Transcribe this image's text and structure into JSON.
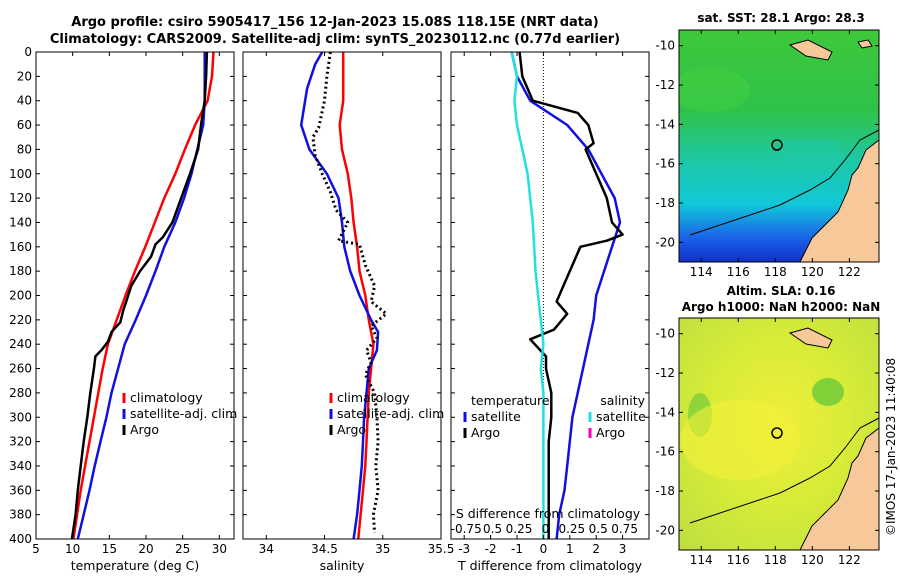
{
  "titles": {
    "line1": "Argo profile: csiro 5905417_156 12-Jan-2023 15.08S 118.15E (NRT data)",
    "line2": "Climatology: CARS2009. Satellite-adj clim: synTS_20230112.nc (0.77d earlier)"
  },
  "watermark": "©IMOS 17-Jan-2023 11:40:08",
  "colors": {
    "climatology": "#ff0000",
    "satellite": "#1010e0",
    "argo": "#000000",
    "sal_satellite": "#20e0e0",
    "sal_argo": "#ff00c0",
    "land": "#f7c89a"
  },
  "chart_data": [
    {
      "type": "line",
      "id": "temperature",
      "xlabel": "temperature (deg C)",
      "ylabel": "",
      "xlim": [
        5,
        32
      ],
      "ylim": [
        400,
        0
      ],
      "xticks": [
        "5",
        "10",
        "15",
        "20",
        "25",
        "30"
      ],
      "yticks": [
        "0",
        "20",
        "40",
        "60",
        "80",
        "100",
        "120",
        "140",
        "160",
        "180",
        "200",
        "220",
        "240",
        "260",
        "280",
        "300",
        "320",
        "340",
        "360",
        "380",
        "400"
      ],
      "legend": [
        "climatology",
        "satellite-adj. clim",
        "Argo"
      ],
      "series": [
        {
          "name": "climatology",
          "style": "climatology",
          "points": [
            [
              29.2,
              0
            ],
            [
              29.0,
              20
            ],
            [
              28.4,
              40
            ],
            [
              26.7,
              60
            ],
            [
              25.3,
              80
            ],
            [
              24.0,
              100
            ],
            [
              22.5,
              120
            ],
            [
              21.2,
              140
            ],
            [
              19.9,
              160
            ],
            [
              18.5,
              180
            ],
            [
              17.2,
              200
            ],
            [
              16.0,
              220
            ],
            [
              14.8,
              240
            ],
            [
              14.1,
              260
            ],
            [
              13.5,
              280
            ],
            [
              12.9,
              300
            ],
            [
              12.3,
              320
            ],
            [
              11.7,
              340
            ],
            [
              11.1,
              360
            ],
            [
              10.6,
              380
            ],
            [
              10.1,
              400
            ]
          ]
        },
        {
          "name": "satellite-adj. clim",
          "style": "satellite",
          "points": [
            [
              28.0,
              0
            ],
            [
              28.0,
              20
            ],
            [
              28.0,
              40
            ],
            [
              27.8,
              60
            ],
            [
              27.0,
              80
            ],
            [
              26.2,
              100
            ],
            [
              25.2,
              120
            ],
            [
              24.0,
              140
            ],
            [
              22.5,
              160
            ],
            [
              21.3,
              180
            ],
            [
              20.0,
              200
            ],
            [
              18.6,
              220
            ],
            [
              17.1,
              240
            ],
            [
              16.2,
              260
            ],
            [
              15.3,
              280
            ],
            [
              14.6,
              300
            ],
            [
              13.8,
              320
            ],
            [
              13.0,
              340
            ],
            [
              12.3,
              360
            ],
            [
              11.5,
              380
            ],
            [
              10.7,
              400
            ]
          ]
        },
        {
          "name": "Argo",
          "style": "argo",
          "points": [
            [
              28.3,
              0
            ],
            [
              28.2,
              20
            ],
            [
              28.0,
              40
            ],
            [
              27.5,
              60
            ],
            [
              27.1,
              80
            ],
            [
              26.0,
              100
            ],
            [
              24.8,
              120
            ],
            [
              23.6,
              140
            ],
            [
              22.3,
              152
            ],
            [
              21.3,
              158
            ],
            [
              20.7,
              168
            ],
            [
              19.2,
              180
            ],
            [
              18.0,
              192
            ],
            [
              17.3,
              205
            ],
            [
              16.9,
              212
            ],
            [
              16.5,
              222
            ],
            [
              15.3,
              230
            ],
            [
              14.8,
              238
            ],
            [
              13.9,
              245
            ],
            [
              13.1,
              250
            ],
            [
              12.9,
              260
            ],
            [
              12.4,
              280
            ],
            [
              12.0,
              300
            ],
            [
              11.5,
              320
            ],
            [
              11.1,
              340
            ],
            [
              10.7,
              360
            ],
            [
              10.4,
              380
            ],
            [
              9.9,
              400
            ]
          ]
        }
      ]
    },
    {
      "type": "line",
      "id": "salinity",
      "xlabel": "salinity",
      "ylabel": "",
      "xlim": [
        33.8,
        35.5
      ],
      "ylim": [
        400,
        0
      ],
      "xticks": [
        "34",
        "34.5",
        "35",
        "35.5"
      ],
      "legend": [
        "climatology",
        "satellite-adj. clim",
        "Argo"
      ],
      "series": [
        {
          "name": "climatology",
          "style": "climatology",
          "points": [
            [
              34.66,
              0
            ],
            [
              34.66,
              20
            ],
            [
              34.66,
              40
            ],
            [
              34.63,
              60
            ],
            [
              34.65,
              80
            ],
            [
              34.7,
              100
            ],
            [
              34.73,
              120
            ],
            [
              34.75,
              140
            ],
            [
              34.78,
              160
            ],
            [
              34.8,
              180
            ],
            [
              34.85,
              200
            ],
            [
              34.88,
              220
            ],
            [
              34.92,
              240
            ],
            [
              34.9,
              260
            ],
            [
              34.88,
              280
            ],
            [
              34.87,
              300
            ],
            [
              34.86,
              320
            ],
            [
              34.85,
              340
            ],
            [
              34.83,
              360
            ],
            [
              34.81,
              380
            ],
            [
              34.79,
              400
            ]
          ]
        },
        {
          "name": "satellite-adj. clim",
          "style": "satellite",
          "points": [
            [
              34.48,
              0
            ],
            [
              34.42,
              10
            ],
            [
              34.35,
              30
            ],
            [
              34.3,
              60
            ],
            [
              34.37,
              80
            ],
            [
              34.52,
              100
            ],
            [
              34.62,
              120
            ],
            [
              34.65,
              140
            ],
            [
              34.67,
              160
            ],
            [
              34.72,
              180
            ],
            [
              34.8,
              200
            ],
            [
              34.9,
              220
            ],
            [
              34.96,
              230
            ],
            [
              34.95,
              245
            ],
            [
              34.88,
              260
            ],
            [
              34.86,
              280
            ],
            [
              34.84,
              300
            ],
            [
              34.83,
              320
            ],
            [
              34.82,
              340
            ],
            [
              34.8,
              360
            ],
            [
              34.78,
              380
            ],
            [
              34.75,
              400
            ]
          ]
        },
        {
          "name": "Argo",
          "style": "argo",
          "points": [
            [
              34.55,
              0
            ],
            [
              34.52,
              20
            ],
            [
              34.5,
              40
            ],
            [
              34.45,
              62
            ],
            [
              34.4,
              70
            ],
            [
              34.42,
              85
            ],
            [
              34.48,
              100
            ],
            [
              34.55,
              115
            ],
            [
              34.6,
              130
            ],
            [
              34.7,
              140
            ],
            [
              34.62,
              155
            ],
            [
              34.8,
              158
            ],
            [
              34.85,
              175
            ],
            [
              34.93,
              192
            ],
            [
              34.9,
              205
            ],
            [
              35.03,
              215
            ],
            [
              34.9,
              225
            ],
            [
              34.95,
              235
            ],
            [
              34.86,
              245
            ],
            [
              34.9,
              255
            ],
            [
              34.85,
              265
            ],
            [
              34.93,
              280
            ],
            [
              34.95,
              300
            ],
            [
              34.96,
              320
            ],
            [
              34.94,
              340
            ],
            [
              34.96,
              360
            ],
            [
              34.92,
              380
            ],
            [
              34.93,
              395
            ]
          ]
        }
      ]
    },
    {
      "type": "line",
      "id": "difference",
      "xlabel": "T difference from climatology",
      "ylabel": "",
      "xlim": [
        -3.5,
        4.0
      ],
      "ylim": [
        400,
        0
      ],
      "xticks": [
        "-3",
        "-2",
        "-1",
        "0",
        "1",
        "2",
        "3"
      ],
      "secondary_xlabel": "S difference from climatology",
      "secondary_xticks": [
        "-0.75",
        "0.5",
        "0.25",
        "0",
        "0.25",
        "0.5",
        "0.75"
      ],
      "zero_line": 0,
      "legend_left_title": "temperature",
      "legend_right_title": "salinity",
      "legend_left": [
        "satellite",
        "Argo"
      ],
      "legend_right": [
        "satellite",
        "Argo"
      ],
      "series": [
        {
          "name": "T satellite",
          "style": "satellite",
          "points": [
            [
              -1.2,
              0
            ],
            [
              -1.0,
              20
            ],
            [
              -0.5,
              40
            ],
            [
              0.9,
              60
            ],
            [
              1.7,
              80
            ],
            [
              2.2,
              100
            ],
            [
              2.7,
              120
            ],
            [
              2.9,
              140
            ],
            [
              2.6,
              160
            ],
            [
              2.3,
              180
            ],
            [
              2.0,
              200
            ],
            [
              1.9,
              220
            ],
            [
              1.7,
              240
            ],
            [
              1.5,
              260
            ],
            [
              1.3,
              280
            ],
            [
              1.1,
              300
            ],
            [
              1.0,
              320
            ],
            [
              0.9,
              340
            ],
            [
              0.8,
              360
            ],
            [
              0.6,
              380
            ],
            [
              0.5,
              400
            ]
          ]
        },
        {
          "name": "T Argo",
          "style": "argo",
          "points": [
            [
              -0.9,
              0
            ],
            [
              -0.8,
              20
            ],
            [
              -0.4,
              40
            ],
            [
              1.3,
              50
            ],
            [
              1.7,
              60
            ],
            [
              1.9,
              75
            ],
            [
              1.6,
              80
            ],
            [
              2.0,
              100
            ],
            [
              2.4,
              120
            ],
            [
              2.6,
              140
            ],
            [
              3.0,
              150
            ],
            [
              2.4,
              155
            ],
            [
              1.4,
              160
            ],
            [
              1.2,
              170
            ],
            [
              0.8,
              190
            ],
            [
              0.5,
              205
            ],
            [
              0.9,
              215
            ],
            [
              0.4,
              228
            ],
            [
              -0.5,
              236
            ],
            [
              0.1,
              250
            ],
            [
              0.1,
              260
            ],
            [
              0.3,
              280
            ],
            [
              0.3,
              300
            ],
            [
              0.2,
              320
            ],
            [
              0.2,
              340
            ],
            [
              0.2,
              360
            ],
            [
              0.2,
              380
            ],
            [
              0.2,
              400
            ]
          ]
        },
        {
          "name": "S satellite",
          "style": "sal_satellite",
          "points": [
            [
              -1.2,
              0
            ],
            [
              -1.0,
              20
            ],
            [
              -1.1,
              40
            ],
            [
              -1.0,
              60
            ],
            [
              -0.8,
              80
            ],
            [
              -0.6,
              100
            ],
            [
              -0.5,
              120
            ],
            [
              -0.4,
              140
            ],
            [
              -0.35,
              160
            ],
            [
              -0.3,
              180
            ],
            [
              -0.2,
              200
            ],
            [
              -0.1,
              220
            ],
            [
              0.0,
              240
            ],
            [
              -0.1,
              260
            ],
            [
              0.0,
              280
            ],
            [
              0.0,
              300
            ],
            [
              0.0,
              320
            ],
            [
              0.0,
              340
            ],
            [
              0.0,
              360
            ],
            [
              0.0,
              380
            ],
            [
              0.0,
              400
            ]
          ]
        }
      ]
    }
  ],
  "maps": [
    {
      "id": "sst",
      "title": "sat. SST: 28.1 Argo: 28.3",
      "xticks": [
        "114",
        "116",
        "118",
        "120",
        "122"
      ],
      "yticks": [
        "-10",
        "-12",
        "-14",
        "-16",
        "-18",
        "-20"
      ]
    },
    {
      "id": "sla",
      "title1": "Altim. SLA: 0.16",
      "title2": "Argo h1000: NaN h2000: NaN",
      "xticks": [
        "114",
        "116",
        "118",
        "120",
        "122"
      ],
      "yticks": [
        "-10",
        "-12",
        "-14",
        "-16",
        "-18",
        "-20"
      ]
    }
  ]
}
